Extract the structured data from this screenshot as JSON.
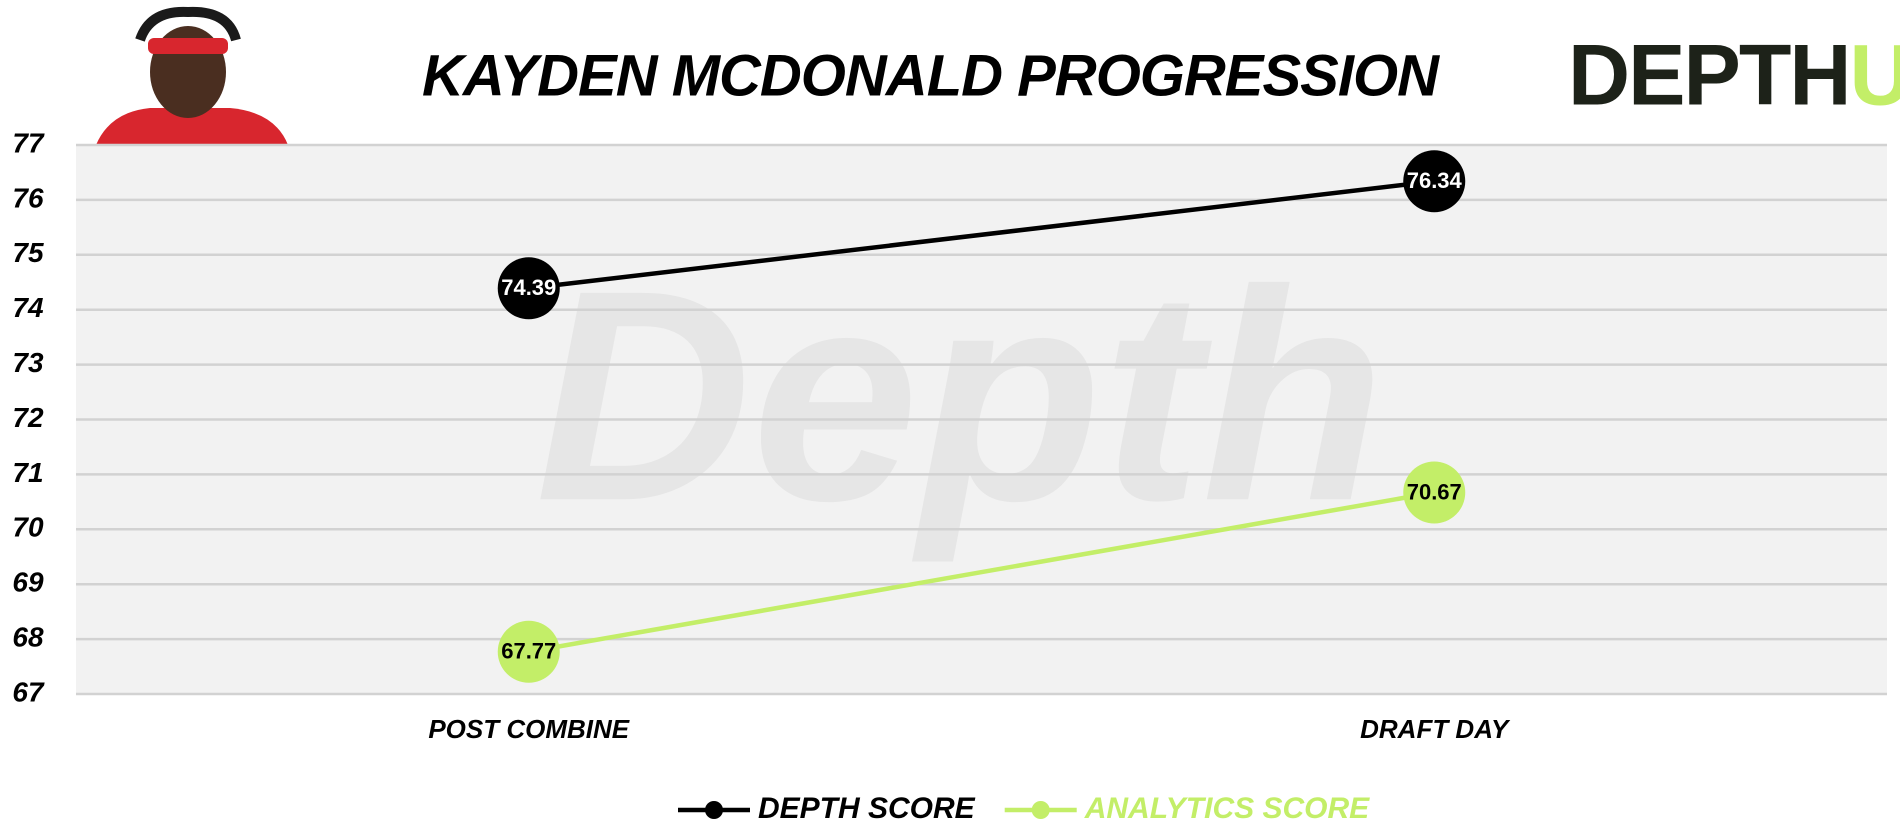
{
  "chart_data": {
    "type": "line",
    "title": "KAYDEN MCDONALD PROGRESSION",
    "logo": {
      "main": "DEPTH",
      "accent": "U"
    },
    "watermark": "Depth",
    "categories": [
      "POST COMBINE",
      "DRAFT DAY"
    ],
    "series": [
      {
        "name": "DEPTH SCORE",
        "color": "#000000",
        "label_color": "#ffffff",
        "values": [
          74.39,
          76.34
        ]
      },
      {
        "name": "ANALYTICS SCORE",
        "color": "#c3ee68",
        "label_color": "#000000",
        "values": [
          67.77,
          70.67
        ]
      }
    ],
    "ylim": [
      67,
      77
    ],
    "yticks": [
      67,
      68,
      69,
      70,
      71,
      72,
      73,
      74,
      75,
      76,
      77
    ],
    "grid": true,
    "legend": "bottom"
  }
}
